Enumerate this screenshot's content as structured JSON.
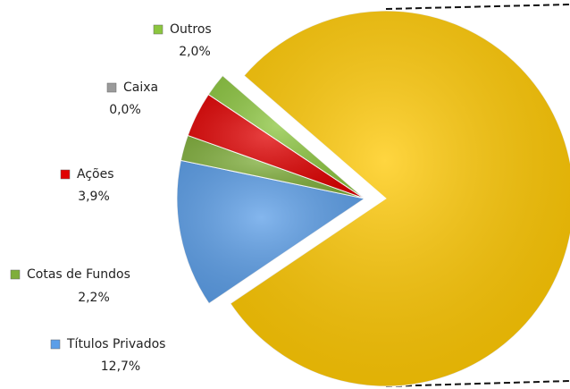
{
  "chart_data": {
    "type": "pie",
    "categories": [
      "Títulos Privados",
      "Cotas de Fundos",
      "Ações",
      "Caixa",
      "Outros",
      null
    ],
    "values": [
      12.7,
      2.2,
      3.9,
      0.0,
      2.0,
      79.2
    ],
    "value_labels": [
      "12,7%",
      "2,2%",
      "3,9%",
      "0,0%",
      "2,0%",
      null
    ],
    "colors": [
      "#5b9ee8",
      "#7fae3a",
      "#e00000",
      "#9a9a9a",
      "#8cc63f",
      "#ffc800"
    ]
  }
}
